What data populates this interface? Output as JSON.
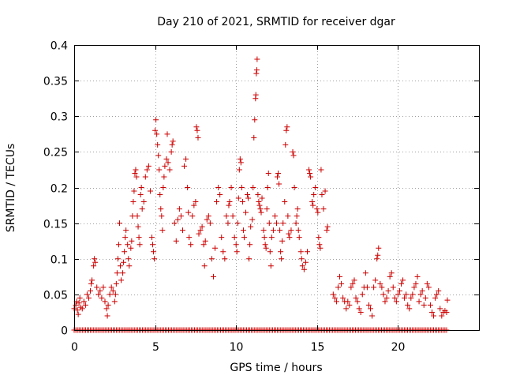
{
  "chart_data": {
    "type": "scatter",
    "title": "Day 210 of 2021, SRMTID for receiver dgar",
    "xlabel": "GPS time / hours",
    "ylabel": "SRMTID / TECUs",
    "xlim": [
      0,
      25
    ],
    "ylim": [
      0,
      0.4
    ],
    "xticks": [
      0,
      5,
      10,
      15,
      20
    ],
    "xtick_labels": [
      "0",
      "5",
      "10",
      "15",
      "20"
    ],
    "yticks": [
      0,
      0.05,
      0.1,
      0.15,
      0.2,
      0.25,
      0.3,
      0.35,
      0.4
    ],
    "ytick_labels": [
      "0",
      "0.05",
      "0.1",
      "0.15",
      "0.2",
      "0.25",
      "0.3",
      "0.35",
      "0.4"
    ],
    "grid": true,
    "marker": "+",
    "color": "#cc0000",
    "series": [
      {
        "name": "SRMTID",
        "points": [
          [
            0.0,
            0.03
          ],
          [
            0.1,
            0.035
          ],
          [
            0.15,
            0.04
          ],
          [
            0.2,
            0.028
          ],
          [
            0.25,
            0.022
          ],
          [
            0.3,
            0.038
          ],
          [
            0.35,
            0.045
          ],
          [
            0.4,
            0.032
          ],
          [
            0.5,
            0.03
          ],
          [
            0.6,
            0.04
          ],
          [
            0.7,
            0.035
          ],
          [
            0.8,
            0.05
          ],
          [
            0.9,
            0.045
          ],
          [
            1.0,
            0.055
          ],
          [
            1.05,
            0.065
          ],
          [
            1.1,
            0.07
          ],
          [
            1.2,
            0.09
          ],
          [
            1.25,
            0.1
          ],
          [
            1.3,
            0.095
          ],
          [
            1.4,
            0.06
          ],
          [
            1.5,
            0.05
          ],
          [
            1.6,
            0.055
          ],
          [
            1.7,
            0.045
          ],
          [
            1.8,
            0.06
          ],
          [
            1.9,
            0.04
          ],
          [
            2.0,
            0.03
          ],
          [
            2.05,
            0.02
          ],
          [
            2.1,
            0.035
          ],
          [
            2.2,
            0.05
          ],
          [
            2.3,
            0.06
          ],
          [
            2.4,
            0.055
          ],
          [
            2.5,
            0.04
          ],
          [
            2.55,
            0.05
          ],
          [
            2.6,
            0.065
          ],
          [
            2.65,
            0.08
          ],
          [
            2.7,
            0.1
          ],
          [
            2.75,
            0.12
          ],
          [
            2.8,
            0.15
          ],
          [
            2.85,
            0.09
          ],
          [
            2.9,
            0.07
          ],
          [
            3.0,
            0.08
          ],
          [
            3.05,
            0.095
          ],
          [
            3.1,
            0.11
          ],
          [
            3.15,
            0.13
          ],
          [
            3.2,
            0.14
          ],
          [
            3.3,
            0.12
          ],
          [
            3.35,
            0.1
          ],
          [
            3.4,
            0.09
          ],
          [
            3.5,
            0.115
          ],
          [
            3.55,
            0.125
          ],
          [
            3.6,
            0.16
          ],
          [
            3.65,
            0.18
          ],
          [
            3.7,
            0.195
          ],
          [
            3.75,
            0.22
          ],
          [
            3.8,
            0.225
          ],
          [
            3.85,
            0.215
          ],
          [
            3.9,
            0.16
          ],
          [
            3.95,
            0.145
          ],
          [
            4.0,
            0.13
          ],
          [
            4.05,
            0.12
          ],
          [
            4.1,
            0.19
          ],
          [
            4.15,
            0.2
          ],
          [
            4.2,
            0.17
          ],
          [
            4.3,
            0.18
          ],
          [
            4.4,
            0.215
          ],
          [
            4.5,
            0.225
          ],
          [
            4.6,
            0.23
          ],
          [
            4.7,
            0.195
          ],
          [
            4.8,
            0.13
          ],
          [
            4.85,
            0.12
          ],
          [
            4.9,
            0.11
          ],
          [
            4.95,
            0.1
          ],
          [
            5.0,
            0.28
          ],
          [
            5.05,
            0.295
          ],
          [
            5.1,
            0.275
          ],
          [
            5.15,
            0.26
          ],
          [
            5.2,
            0.245
          ],
          [
            5.25,
            0.225
          ],
          [
            5.3,
            0.19
          ],
          [
            5.35,
            0.17
          ],
          [
            5.4,
            0.16
          ],
          [
            5.45,
            0.14
          ],
          [
            5.5,
            0.2
          ],
          [
            5.55,
            0.215
          ],
          [
            5.6,
            0.23
          ],
          [
            5.7,
            0.24
          ],
          [
            5.75,
            0.275
          ],
          [
            5.8,
            0.235
          ],
          [
            5.9,
            0.225
          ],
          [
            6.0,
            0.25
          ],
          [
            6.05,
            0.26
          ],
          [
            6.1,
            0.265
          ],
          [
            6.2,
            0.15
          ],
          [
            6.3,
            0.125
          ],
          [
            6.4,
            0.155
          ],
          [
            6.5,
            0.17
          ],
          [
            6.6,
            0.16
          ],
          [
            6.7,
            0.14
          ],
          [
            6.8,
            0.23
          ],
          [
            6.9,
            0.24
          ],
          [
            7.0,
            0.2
          ],
          [
            7.05,
            0.165
          ],
          [
            7.1,
            0.13
          ],
          [
            7.2,
            0.12
          ],
          [
            7.3,
            0.16
          ],
          [
            7.4,
            0.175
          ],
          [
            7.5,
            0.18
          ],
          [
            7.55,
            0.285
          ],
          [
            7.6,
            0.28
          ],
          [
            7.65,
            0.27
          ],
          [
            7.7,
            0.135
          ],
          [
            7.8,
            0.14
          ],
          [
            7.9,
            0.145
          ],
          [
            8.0,
            0.12
          ],
          [
            8.05,
            0.09
          ],
          [
            8.1,
            0.125
          ],
          [
            8.2,
            0.155
          ],
          [
            8.3,
            0.16
          ],
          [
            8.4,
            0.15
          ],
          [
            8.5,
            0.1
          ],
          [
            8.6,
            0.075
          ],
          [
            8.7,
            0.115
          ],
          [
            8.8,
            0.18
          ],
          [
            8.9,
            0.2
          ],
          [
            9.0,
            0.19
          ],
          [
            9.1,
            0.13
          ],
          [
            9.2,
            0.11
          ],
          [
            9.3,
            0.1
          ],
          [
            9.4,
            0.16
          ],
          [
            9.5,
            0.15
          ],
          [
            9.55,
            0.175
          ],
          [
            9.6,
            0.18
          ],
          [
            9.7,
            0.2
          ],
          [
            9.8,
            0.16
          ],
          [
            9.9,
            0.13
          ],
          [
            10.0,
            0.12
          ],
          [
            10.05,
            0.11
          ],
          [
            10.1,
            0.15
          ],
          [
            10.15,
            0.185
          ],
          [
            10.2,
            0.225
          ],
          [
            10.25,
            0.24
          ],
          [
            10.3,
            0.235
          ],
          [
            10.35,
            0.2
          ],
          [
            10.4,
            0.18
          ],
          [
            10.45,
            0.14
          ],
          [
            10.5,
            0.13
          ],
          [
            10.6,
            0.165
          ],
          [
            10.7,
            0.19
          ],
          [
            10.75,
            0.185
          ],
          [
            10.8,
            0.1
          ],
          [
            10.85,
            0.12
          ],
          [
            10.9,
            0.145
          ],
          [
            11.0,
            0.155
          ],
          [
            11.05,
            0.2
          ],
          [
            11.1,
            0.27
          ],
          [
            11.15,
            0.295
          ],
          [
            11.2,
            0.325
          ],
          [
            11.22,
            0.33
          ],
          [
            11.25,
            0.36
          ],
          [
            11.28,
            0.365
          ],
          [
            11.3,
            0.38
          ],
          [
            11.35,
            0.19
          ],
          [
            11.4,
            0.18
          ],
          [
            11.45,
            0.175
          ],
          [
            11.5,
            0.17
          ],
          [
            11.55,
            0.165
          ],
          [
            11.6,
            0.185
          ],
          [
            11.7,
            0.14
          ],
          [
            11.75,
            0.13
          ],
          [
            11.8,
            0.12
          ],
          [
            11.85,
            0.115
          ],
          [
            11.9,
            0.17
          ],
          [
            11.95,
            0.2
          ],
          [
            12.0,
            0.22
          ],
          [
            12.05,
            0.15
          ],
          [
            12.1,
            0.11
          ],
          [
            12.15,
            0.09
          ],
          [
            12.2,
            0.13
          ],
          [
            12.3,
            0.14
          ],
          [
            12.4,
            0.16
          ],
          [
            12.5,
            0.15
          ],
          [
            12.55,
            0.215
          ],
          [
            12.6,
            0.22
          ],
          [
            12.65,
            0.205
          ],
          [
            12.7,
            0.14
          ],
          [
            12.75,
            0.11
          ],
          [
            12.8,
            0.1
          ],
          [
            12.85,
            0.125
          ],
          [
            12.9,
            0.15
          ],
          [
            13.0,
            0.18
          ],
          [
            13.05,
            0.26
          ],
          [
            13.1,
            0.28
          ],
          [
            13.15,
            0.285
          ],
          [
            13.2,
            0.16
          ],
          [
            13.25,
            0.135
          ],
          [
            13.3,
            0.13
          ],
          [
            13.4,
            0.14
          ],
          [
            13.5,
            0.25
          ],
          [
            13.55,
            0.245
          ],
          [
            13.6,
            0.2
          ],
          [
            13.7,
            0.15
          ],
          [
            13.75,
            0.16
          ],
          [
            13.8,
            0.17
          ],
          [
            13.85,
            0.14
          ],
          [
            13.9,
            0.13
          ],
          [
            14.0,
            0.11
          ],
          [
            14.05,
            0.1
          ],
          [
            14.1,
            0.09
          ],
          [
            14.2,
            0.085
          ],
          [
            14.3,
            0.095
          ],
          [
            14.4,
            0.11
          ],
          [
            14.5,
            0.225
          ],
          [
            14.55,
            0.22
          ],
          [
            14.6,
            0.215
          ],
          [
            14.7,
            0.18
          ],
          [
            14.75,
            0.175
          ],
          [
            14.8,
            0.19
          ],
          [
            14.9,
            0.2
          ],
          [
            15.0,
            0.17
          ],
          [
            15.05,
            0.165
          ],
          [
            15.1,
            0.13
          ],
          [
            15.15,
            0.12
          ],
          [
            15.2,
            0.115
          ],
          [
            15.25,
            0.225
          ],
          [
            15.3,
            0.19
          ],
          [
            15.4,
            0.17
          ],
          [
            15.5,
            0.195
          ],
          [
            15.6,
            0.14
          ],
          [
            15.65,
            0.145
          ],
          [
            16.0,
            0.05
          ],
          [
            16.1,
            0.045
          ],
          [
            16.2,
            0.04
          ],
          [
            16.3,
            0.06
          ],
          [
            16.4,
            0.075
          ],
          [
            16.5,
            0.065
          ],
          [
            16.6,
            0.045
          ],
          [
            16.7,
            0.04
          ],
          [
            16.8,
            0.03
          ],
          [
            16.9,
            0.04
          ],
          [
            17.0,
            0.035
          ],
          [
            17.1,
            0.06
          ],
          [
            17.2,
            0.065
          ],
          [
            17.3,
            0.07
          ],
          [
            17.4,
            0.045
          ],
          [
            17.5,
            0.04
          ],
          [
            17.6,
            0.03
          ],
          [
            17.7,
            0.025
          ],
          [
            17.8,
            0.05
          ],
          [
            17.9,
            0.06
          ],
          [
            18.0,
            0.08
          ],
          [
            18.1,
            0.06
          ],
          [
            18.2,
            0.035
          ],
          [
            18.3,
            0.03
          ],
          [
            18.4,
            0.02
          ],
          [
            18.5,
            0.06
          ],
          [
            18.6,
            0.07
          ],
          [
            18.7,
            0.1
          ],
          [
            18.75,
            0.105
          ],
          [
            18.8,
            0.115
          ],
          [
            18.9,
            0.065
          ],
          [
            19.0,
            0.06
          ],
          [
            19.1,
            0.05
          ],
          [
            19.2,
            0.04
          ],
          [
            19.3,
            0.045
          ],
          [
            19.4,
            0.055
          ],
          [
            19.5,
            0.075
          ],
          [
            19.6,
            0.08
          ],
          [
            19.7,
            0.06
          ],
          [
            19.8,
            0.045
          ],
          [
            19.9,
            0.04
          ],
          [
            20.0,
            0.05
          ],
          [
            20.1,
            0.055
          ],
          [
            20.2,
            0.065
          ],
          [
            20.3,
            0.07
          ],
          [
            20.4,
            0.045
          ],
          [
            20.5,
            0.05
          ],
          [
            20.6,
            0.035
          ],
          [
            20.7,
            0.03
          ],
          [
            20.8,
            0.045
          ],
          [
            20.9,
            0.05
          ],
          [
            21.0,
            0.06
          ],
          [
            21.1,
            0.065
          ],
          [
            21.2,
            0.075
          ],
          [
            21.3,
            0.04
          ],
          [
            21.4,
            0.05
          ],
          [
            21.5,
            0.055
          ],
          [
            21.6,
            0.035
          ],
          [
            21.7,
            0.045
          ],
          [
            21.8,
            0.065
          ],
          [
            21.9,
            0.06
          ],
          [
            22.0,
            0.035
          ],
          [
            22.1,
            0.025
          ],
          [
            22.2,
            0.02
          ],
          [
            22.3,
            0.045
          ],
          [
            22.4,
            0.05
          ],
          [
            22.5,
            0.055
          ],
          [
            22.6,
            0.03
          ],
          [
            22.7,
            0.02
          ],
          [
            22.8,
            0.025
          ],
          [
            22.9,
            0.027
          ],
          [
            23.0,
            0.025
          ],
          [
            23.05,
            0.042
          ]
        ],
        "baseline_x_range": [
          0,
          23
        ],
        "baseline_count": 230,
        "baseline_value": 0
      }
    ]
  }
}
